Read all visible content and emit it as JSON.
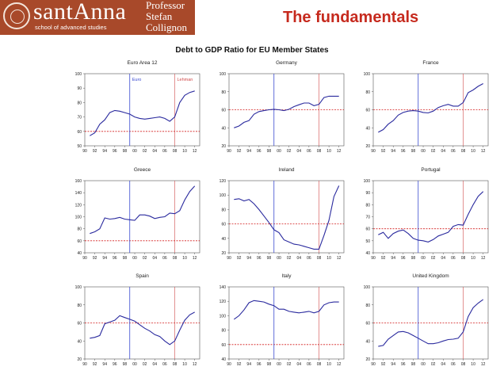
{
  "header": {
    "brand": "santAnna",
    "brand_sub": "school of advanced studies",
    "prof_lines": [
      "Professor",
      "Stefan",
      "Collignon"
    ],
    "slide_title": "The fundamentals",
    "figure_title": "Debt to GDP Ratio for EU Member States"
  },
  "colors": {
    "banner": "#a8492a",
    "title": "#c62a1e",
    "series": "#2a2a9e",
    "euro_line": "#3a4ad0",
    "lehman_line": "#d04a4a",
    "threshold": "#d42020"
  },
  "chart_data": [
    {
      "type": "line",
      "title": "Euro Area 12",
      "x": [
        91,
        92,
        93,
        94,
        95,
        96,
        97,
        98,
        99,
        100,
        101,
        102,
        103,
        104,
        105,
        106,
        107,
        108,
        109,
        110,
        111,
        112
      ],
      "values": [
        57,
        59,
        65,
        68,
        73,
        74.5,
        74,
        73,
        72,
        70,
        69,
        68.5,
        69,
        69.5,
        70,
        69,
        67,
        70,
        80,
        85,
        87,
        88
      ],
      "ylim": [
        50,
        100
      ],
      "yticks": [
        50,
        60,
        70,
        80,
        90,
        100
      ],
      "threshold": 60,
      "xtick_labels": [
        "90",
        "92",
        "94",
        "96",
        "98",
        "00",
        "02",
        "04",
        "06",
        "08",
        "10",
        "12"
      ],
      "euro_label": "Euro",
      "lehman_label": "Lehman"
    },
    {
      "type": "line",
      "title": "Germany",
      "x": [
        91,
        92,
        93,
        94,
        95,
        96,
        97,
        98,
        99,
        100,
        101,
        102,
        103,
        104,
        105,
        106,
        107,
        108,
        109,
        110,
        111,
        112
      ],
      "values": [
        40,
        42,
        46,
        48,
        55,
        58,
        59,
        60,
        60.5,
        60,
        59,
        60.5,
        63.5,
        65.5,
        67.5,
        67.5,
        64.5,
        66,
        73.5,
        75,
        75,
        75
      ],
      "ylim": [
        20,
        100
      ],
      "yticks": [
        20,
        40,
        60,
        80,
        100
      ],
      "threshold": 60,
      "xtick_labels": [
        "90",
        "92",
        "94",
        "96",
        "98",
        "00",
        "02",
        "04",
        "06",
        "08",
        "10",
        "12"
      ]
    },
    {
      "type": "line",
      "title": "France",
      "x": [
        91,
        92,
        93,
        94,
        95,
        96,
        97,
        98,
        99,
        100,
        101,
        102,
        103,
        104,
        105,
        106,
        107,
        108,
        109,
        110,
        111,
        112
      ],
      "values": [
        35,
        38,
        44,
        48,
        54,
        57,
        58.5,
        59,
        58.5,
        57,
        56.5,
        58.5,
        62.5,
        64.5,
        66,
        64,
        64,
        68,
        79,
        82,
        86,
        89
      ],
      "ylim": [
        20,
        100
      ],
      "yticks": [
        20,
        40,
        60,
        80,
        100
      ],
      "threshold": 60,
      "xtick_labels": [
        "90",
        "92",
        "94",
        "96",
        "98",
        "00",
        "02",
        "04",
        "06",
        "08",
        "10",
        "12"
      ]
    },
    {
      "type": "line",
      "title": "Greece",
      "x": [
        91,
        92,
        93,
        94,
        95,
        96,
        97,
        98,
        99,
        100,
        101,
        102,
        103,
        104,
        105,
        106,
        107,
        108,
        109,
        110,
        111,
        112
      ],
      "values": [
        72,
        75,
        80,
        98,
        96,
        97,
        99,
        96,
        95,
        94,
        103,
        103,
        101,
        97,
        99,
        100,
        106,
        105,
        110,
        128,
        142,
        151
      ],
      "ylim": [
        40,
        160
      ],
      "yticks": [
        40,
        60,
        80,
        100,
        120,
        140,
        160
      ],
      "threshold": 60,
      "xtick_labels": [
        "90",
        "92",
        "94",
        "96",
        "98",
        "00",
        "02",
        "04",
        "06",
        "08",
        "10",
        "12"
      ]
    },
    {
      "type": "line",
      "title": "Ireland",
      "x": [
        91,
        92,
        93,
        94,
        95,
        96,
        97,
        98,
        99,
        100,
        101,
        102,
        103,
        104,
        105,
        106,
        107,
        108,
        109,
        110,
        111,
        112
      ],
      "values": [
        94,
        95,
        92,
        94,
        88,
        80,
        71,
        62,
        52,
        48,
        38,
        35,
        32,
        31,
        29,
        27,
        25,
        25,
        44,
        65,
        98,
        113
      ],
      "ylim": [
        20,
        120
      ],
      "yticks": [
        20,
        40,
        60,
        80,
        100,
        120
      ],
      "threshold": 60,
      "xtick_labels": [
        "90",
        "92",
        "94",
        "96",
        "98",
        "00",
        "02",
        "04",
        "06",
        "08",
        "10",
        "12"
      ]
    },
    {
      "type": "line",
      "title": "Portugal",
      "x": [
        91,
        92,
        93,
        94,
        95,
        96,
        97,
        98,
        99,
        100,
        101,
        102,
        103,
        104,
        105,
        106,
        107,
        108,
        109,
        110,
        111,
        112
      ],
      "values": [
        55,
        57,
        52,
        56,
        58,
        59,
        56,
        52,
        50.5,
        50,
        49,
        51,
        54,
        55.5,
        57,
        62,
        63.5,
        63,
        72,
        80,
        87,
        91
      ],
      "ylim": [
        40,
        100
      ],
      "yticks": [
        40,
        50,
        60,
        70,
        80,
        90,
        100
      ],
      "threshold": 60,
      "xtick_labels": [
        "90",
        "92",
        "94",
        "96",
        "98",
        "00",
        "02",
        "04",
        "06",
        "08",
        "10",
        "12"
      ]
    },
    {
      "type": "line",
      "title": "Spain",
      "x": [
        91,
        92,
        93,
        94,
        95,
        96,
        97,
        98,
        99,
        100,
        101,
        102,
        103,
        104,
        105,
        106,
        107,
        108,
        109,
        110,
        111,
        112
      ],
      "values": [
        43,
        44,
        46,
        59,
        61,
        63,
        68,
        66,
        64,
        62,
        58,
        54,
        51,
        47,
        45,
        40,
        36,
        40,
        52,
        63,
        69,
        72
      ],
      "ylim": [
        20,
        100
      ],
      "yticks": [
        20,
        40,
        60,
        80,
        100
      ],
      "threshold": 60,
      "xtick_labels": [
        "90",
        "92",
        "94",
        "96",
        "98",
        "00",
        "02",
        "04",
        "06",
        "08",
        "10",
        "12"
      ]
    },
    {
      "type": "line",
      "title": "Italy",
      "x": [
        91,
        92,
        93,
        94,
        95,
        96,
        97,
        98,
        99,
        100,
        101,
        102,
        103,
        104,
        105,
        106,
        107,
        108,
        109,
        110,
        111,
        112
      ],
      "values": [
        95,
        100,
        108,
        118,
        121,
        120,
        119,
        116,
        114,
        109,
        109,
        106,
        105,
        104,
        105,
        106,
        104,
        106,
        115,
        118,
        119,
        119
      ],
      "ylim": [
        40,
        140
      ],
      "yticks": [
        40,
        60,
        80,
        100,
        120,
        140
      ],
      "threshold": 60,
      "xtick_labels": [
        "90",
        "92",
        "94",
        "96",
        "98",
        "00",
        "02",
        "04",
        "06",
        "08",
        "10",
        "12"
      ]
    },
    {
      "type": "line",
      "title": "United Kingdom",
      "x": [
        91,
        92,
        93,
        94,
        95,
        96,
        97,
        98,
        99,
        100,
        101,
        102,
        103,
        104,
        105,
        106,
        107,
        108,
        109,
        110,
        111,
        112
      ],
      "values": [
        34,
        35,
        42,
        46,
        50,
        50.5,
        49,
        46,
        43,
        40,
        37,
        37,
        38,
        40,
        41.5,
        42,
        43,
        50,
        67,
        77,
        82,
        86
      ],
      "ylim": [
        20,
        100
      ],
      "yticks": [
        20,
        40,
        60,
        80,
        100
      ],
      "threshold": 60,
      "xtick_labels": [
        "90",
        "92",
        "94",
        "96",
        "98",
        "00",
        "02",
        "04",
        "06",
        "08",
        "10",
        "12"
      ]
    }
  ]
}
